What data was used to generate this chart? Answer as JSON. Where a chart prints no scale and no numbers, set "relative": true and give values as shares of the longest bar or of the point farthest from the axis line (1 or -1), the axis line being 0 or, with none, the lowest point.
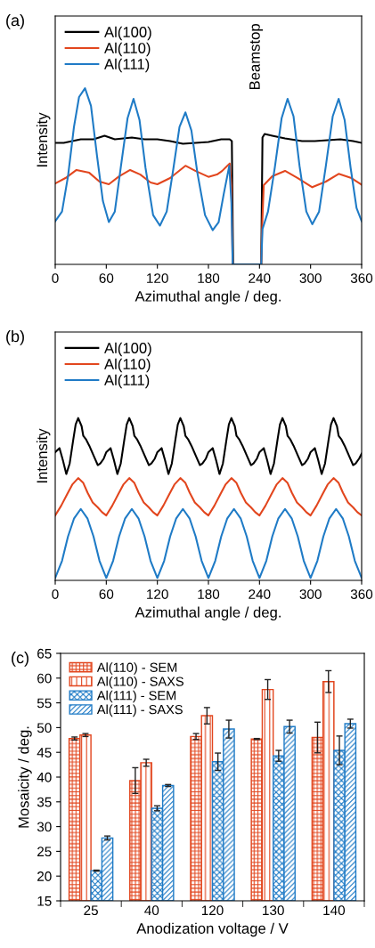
{
  "chart_data": [
    {
      "type": "line",
      "title": "(a)",
      "xlabel": "Azimuthal angle / deg.",
      "ylabel": "Intensity",
      "relative": true,
      "xlim": [
        0,
        360
      ],
      "xticks": [
        0,
        60,
        120,
        180,
        240,
        300,
        360
      ],
      "tick_labels": "x",
      "legend": "top left",
      "annotations": [
        "Beamstop"
      ],
      "series": [
        {
          "name": "Al(100)",
          "color": "#000000",
          "x": [
            0,
            10,
            20,
            30,
            45,
            58,
            70,
            90,
            105,
            120,
            135,
            150,
            165,
            180,
            195,
            205,
            207.5,
            209,
            242,
            243.5,
            246,
            255,
            270,
            290,
            305,
            320,
            335,
            350,
            360
          ],
          "values": [
            0.69,
            0.69,
            0.7,
            0.71,
            0.71,
            0.73,
            0.71,
            0.72,
            0.71,
            0.71,
            0.7,
            0.685,
            0.69,
            0.695,
            0.71,
            0.71,
            0.7,
            0.0,
            0.0,
            0.72,
            0.74,
            0.73,
            0.715,
            0.7,
            0.7,
            0.705,
            0.71,
            0.7,
            0.69
          ]
        },
        {
          "name": "Al(110)",
          "color": "#e2461e",
          "x": [
            0,
            12,
            25,
            40,
            52,
            63,
            75,
            88,
            100,
            112,
            120,
            135,
            153,
            165,
            180,
            190,
            196,
            205,
            207,
            208.5,
            242,
            243,
            245,
            255,
            270,
            285,
            302,
            318,
            333,
            348,
            360
          ],
          "values": [
            0.459,
            0.49,
            0.536,
            0.52,
            0.47,
            0.455,
            0.5,
            0.536,
            0.51,
            0.465,
            0.455,
            0.49,
            0.56,
            0.53,
            0.497,
            0.51,
            0.53,
            0.573,
            0.45,
            0.0,
            0.0,
            0.2,
            0.45,
            0.5,
            0.531,
            0.49,
            0.438,
            0.47,
            0.514,
            0.49,
            0.452
          ]
        },
        {
          "name": "Al(111)",
          "color": "#1f7bc6",
          "x": [
            0,
            8,
            15,
            22,
            28,
            35,
            42,
            49,
            56,
            63,
            70,
            77,
            85,
            92,
            99,
            106,
            115,
            123,
            131,
            139,
            146,
            153,
            160,
            167,
            176,
            185,
            192,
            198,
            204.5,
            207,
            208.5,
            210,
            242,
            243.5,
            250,
            258,
            266,
            273,
            280,
            287,
            295,
            302,
            310,
            318,
            326,
            333,
            340,
            347,
            354,
            360
          ],
          "values": [
            0.245,
            0.3,
            0.5,
            0.78,
            0.95,
            1.0,
            0.9,
            0.62,
            0.36,
            0.24,
            0.3,
            0.55,
            0.83,
            0.94,
            0.82,
            0.55,
            0.28,
            0.22,
            0.3,
            0.55,
            0.78,
            0.863,
            0.76,
            0.52,
            0.28,
            0.194,
            0.24,
            0.4,
            0.56,
            0.35,
            0.0,
            0.0,
            0.0,
            0.2,
            0.3,
            0.55,
            0.83,
            0.94,
            0.84,
            0.56,
            0.3,
            0.228,
            0.3,
            0.56,
            0.84,
            0.94,
            0.82,
            0.55,
            0.32,
            0.245
          ]
        }
      ]
    },
    {
      "type": "line",
      "title": "(b)",
      "xlabel": "Azimuthal angle / deg.",
      "ylabel": "Intensity",
      "relative": true,
      "xlim": [
        0,
        360
      ],
      "xticks": [
        0,
        60,
        120,
        180,
        240,
        300,
        360
      ],
      "tick_labels": "x",
      "legend": "top left",
      "series": [
        {
          "name": "Al(100)",
          "color": "#000000",
          "x": [
            0,
            5,
            9,
            13,
            17,
            21,
            24,
            27,
            31,
            33,
            36,
            40,
            45,
            50,
            53,
            57,
            60,
            65,
            69,
            73,
            77,
            81,
            84,
            87,
            91,
            93,
            96,
            100,
            105,
            110,
            113,
            117,
            120,
            125,
            129,
            133,
            137,
            141,
            144,
            147,
            151,
            153,
            156,
            160,
            165,
            170,
            173,
            177,
            180,
            185,
            189,
            193,
            197,
            201,
            204,
            207,
            211,
            213,
            216,
            220,
            225,
            230,
            233,
            237,
            240,
            245,
            249,
            253,
            257,
            261,
            264,
            267,
            271,
            273,
            276,
            280,
            285,
            290,
            293,
            297,
            300,
            305,
            309,
            313,
            317,
            321,
            324,
            327,
            331,
            333,
            336,
            340,
            345,
            350,
            353,
            357,
            360
          ],
          "values": [
            0.79,
            0.815,
            0.74,
            0.655,
            0.72,
            0.86,
            0.96,
            1.0,
            0.95,
            0.89,
            0.87,
            0.83,
            0.77,
            0.71,
            0.72,
            0.75,
            0.79,
            0.815,
            0.74,
            0.655,
            0.72,
            0.86,
            0.96,
            1.0,
            0.95,
            0.89,
            0.87,
            0.83,
            0.77,
            0.71,
            0.72,
            0.75,
            0.79,
            0.815,
            0.74,
            0.655,
            0.72,
            0.86,
            0.96,
            1.0,
            0.95,
            0.89,
            0.87,
            0.83,
            0.77,
            0.71,
            0.72,
            0.75,
            0.79,
            0.815,
            0.74,
            0.655,
            0.72,
            0.86,
            0.96,
            1.0,
            0.95,
            0.89,
            0.87,
            0.83,
            0.77,
            0.71,
            0.72,
            0.75,
            0.79,
            0.815,
            0.74,
            0.655,
            0.72,
            0.86,
            0.96,
            1.0,
            0.95,
            0.89,
            0.87,
            0.83,
            0.77,
            0.71,
            0.72,
            0.75,
            0.79,
            0.815,
            0.74,
            0.655,
            0.72,
            0.86,
            0.96,
            1.0,
            0.95,
            0.89,
            0.87,
            0.83,
            0.77,
            0.71,
            0.72,
            0.75,
            0.78
          ]
        },
        {
          "name": "Al(110)",
          "color": "#e2461e",
          "x": [
            0,
            7,
            14,
            20,
            27,
            33,
            38,
            44,
            50,
            55,
            60,
            67,
            74,
            80,
            87,
            93,
            98,
            104,
            110,
            115,
            120,
            127,
            134,
            140,
            147,
            153,
            158,
            164,
            170,
            175,
            180,
            187,
            194,
            200,
            207,
            213,
            218,
            224,
            230,
            235,
            240,
            247,
            254,
            260,
            267,
            273,
            278,
            284,
            290,
            295,
            300,
            307,
            314,
            320,
            327,
            333,
            338,
            344,
            350,
            355,
            360
          ],
          "values": [
            0.4,
            0.46,
            0.53,
            0.59,
            0.63,
            0.6,
            0.54,
            0.48,
            0.45,
            0.42,
            0.4,
            0.46,
            0.53,
            0.59,
            0.63,
            0.6,
            0.54,
            0.48,
            0.45,
            0.42,
            0.4,
            0.46,
            0.53,
            0.59,
            0.63,
            0.6,
            0.54,
            0.48,
            0.45,
            0.42,
            0.4,
            0.46,
            0.53,
            0.59,
            0.63,
            0.6,
            0.54,
            0.48,
            0.45,
            0.42,
            0.4,
            0.46,
            0.53,
            0.59,
            0.63,
            0.6,
            0.54,
            0.48,
            0.45,
            0.42,
            0.4,
            0.46,
            0.53,
            0.59,
            0.63,
            0.6,
            0.54,
            0.48,
            0.45,
            0.42,
            0.4
          ]
        },
        {
          "name": "Al(111)",
          "color": "#1f7bc6",
          "x": [
            0,
            8,
            15,
            22,
            30,
            38,
            45,
            52,
            60,
            68,
            75,
            82,
            90,
            98,
            105,
            112,
            120,
            128,
            135,
            142,
            150,
            158,
            165,
            172,
            180,
            188,
            195,
            202,
            210,
            218,
            225,
            232,
            240,
            248,
            255,
            262,
            270,
            278,
            285,
            292,
            300,
            308,
            315,
            322,
            330,
            338,
            345,
            352,
            360
          ],
          "values": [
            0.015,
            0.12,
            0.27,
            0.38,
            0.44,
            0.38,
            0.27,
            0.12,
            0.015,
            0.12,
            0.27,
            0.38,
            0.44,
            0.38,
            0.27,
            0.12,
            0.015,
            0.12,
            0.27,
            0.38,
            0.44,
            0.38,
            0.27,
            0.12,
            0.015,
            0.12,
            0.27,
            0.38,
            0.44,
            0.38,
            0.27,
            0.12,
            0.015,
            0.12,
            0.27,
            0.38,
            0.44,
            0.38,
            0.27,
            0.12,
            0.015,
            0.12,
            0.27,
            0.38,
            0.44,
            0.38,
            0.27,
            0.12,
            0.015
          ]
        }
      ]
    },
    {
      "type": "bar",
      "title": "(c)",
      "xlabel": "Anodization voltage / V",
      "ylabel": "Mosaicity / deg.",
      "categories": [
        "25",
        "40",
        "120",
        "130",
        "140"
      ],
      "ylim": [
        15,
        65
      ],
      "yticks": [
        15,
        20,
        25,
        30,
        35,
        40,
        45,
        50,
        55,
        60,
        65
      ],
      "legend": "top left",
      "series": [
        {
          "name": "Al(110) - SEM",
          "color": "#e2461e",
          "values": [
            47.8,
            39.3,
            48.2,
            47.7,
            48.0
          ],
          "errors": [
            0.3,
            2.6,
            0.6,
            0.1,
            3.1
          ]
        },
        {
          "name": "Al(110) - SAXS",
          "color": "#e2461e",
          "values": [
            48.5,
            42.9,
            52.4,
            57.7,
            59.3
          ],
          "errors": [
            0.3,
            0.7,
            1.65,
            2.0,
            2.2
          ]
        },
        {
          "name": "Al(111) - SEM",
          "color": "#1f7bc6",
          "values": [
            21.1,
            33.7,
            43.1,
            44.3,
            45.4
          ],
          "errors": [
            0.1,
            0.5,
            1.75,
            1.1,
            2.9
          ]
        },
        {
          "name": "Al(111) - SAXS",
          "color": "#1f7bc6",
          "values": [
            27.7,
            38.3,
            49.7,
            50.2,
            50.8
          ],
          "errors": [
            0.4,
            0.2,
            1.8,
            1.3,
            0.9
          ]
        }
      ]
    }
  ]
}
